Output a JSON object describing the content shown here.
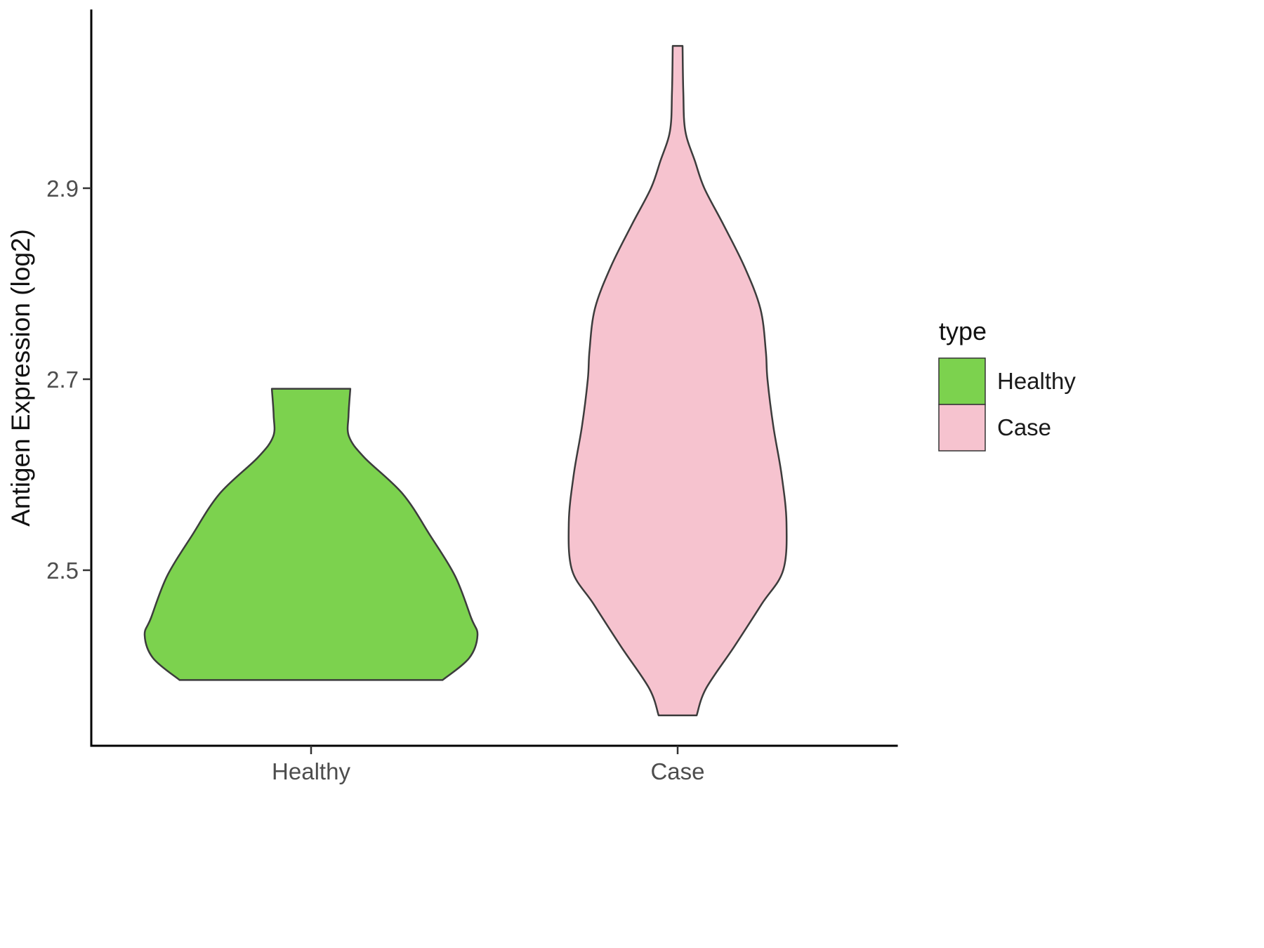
{
  "chart_data": {
    "type": "violin",
    "title": "",
    "xlabel": "",
    "ylabel": "Antigen Expression (log2)",
    "categories": [
      "Healthy",
      "Case"
    ],
    "y_ticks": [
      "2.5",
      "2.7",
      "2.9"
    ],
    "y_tick_values": [
      2.5,
      2.7,
      2.9
    ],
    "ylim": [
      2.32,
      3.09
    ],
    "grid": "off",
    "legend": {
      "title": "type",
      "position": "right",
      "entries": [
        {
          "label": "Healthy",
          "color": "#7CD24E"
        },
        {
          "label": "Case",
          "color": "#F6C3CF"
        }
      ]
    },
    "series": [
      {
        "name": "Healthy",
        "color": "#7CD24E",
        "flat_top": true,
        "flat_bottom": true,
        "y_range": [
          2.385,
          2.69
        ],
        "profile": [
          [
            2.69,
            0.236
          ],
          [
            2.662,
            0.225
          ],
          [
            2.64,
            0.228
          ],
          [
            2.618,
            0.32
          ],
          [
            2.58,
            0.55
          ],
          [
            2.536,
            0.717
          ],
          [
            2.494,
            0.865
          ],
          [
            2.45,
            0.962
          ],
          [
            2.432,
            1.0
          ],
          [
            2.408,
            0.95
          ],
          [
            2.385,
            0.79
          ]
        ]
      },
      {
        "name": "Case",
        "color": "#F6C3CF",
        "flat_top": true,
        "flat_bottom": true,
        "y_range": [
          2.348,
          3.049
        ],
        "profile": [
          [
            3.049,
            0.045
          ],
          [
            3.0,
            0.052
          ],
          [
            2.96,
            0.07
          ],
          [
            2.928,
            0.16
          ],
          [
            2.9,
            0.245
          ],
          [
            2.862,
            0.42
          ],
          [
            2.818,
            0.613
          ],
          [
            2.774,
            0.76
          ],
          [
            2.73,
            0.81
          ],
          [
            2.7,
            0.825
          ],
          [
            2.65,
            0.88
          ],
          [
            2.6,
            0.955
          ],
          [
            2.55,
            1.0
          ],
          [
            2.5,
            0.97
          ],
          [
            2.465,
            0.775
          ],
          [
            2.42,
            0.52
          ],
          [
            2.376,
            0.26
          ],
          [
            2.348,
            0.175
          ]
        ]
      }
    ]
  }
}
